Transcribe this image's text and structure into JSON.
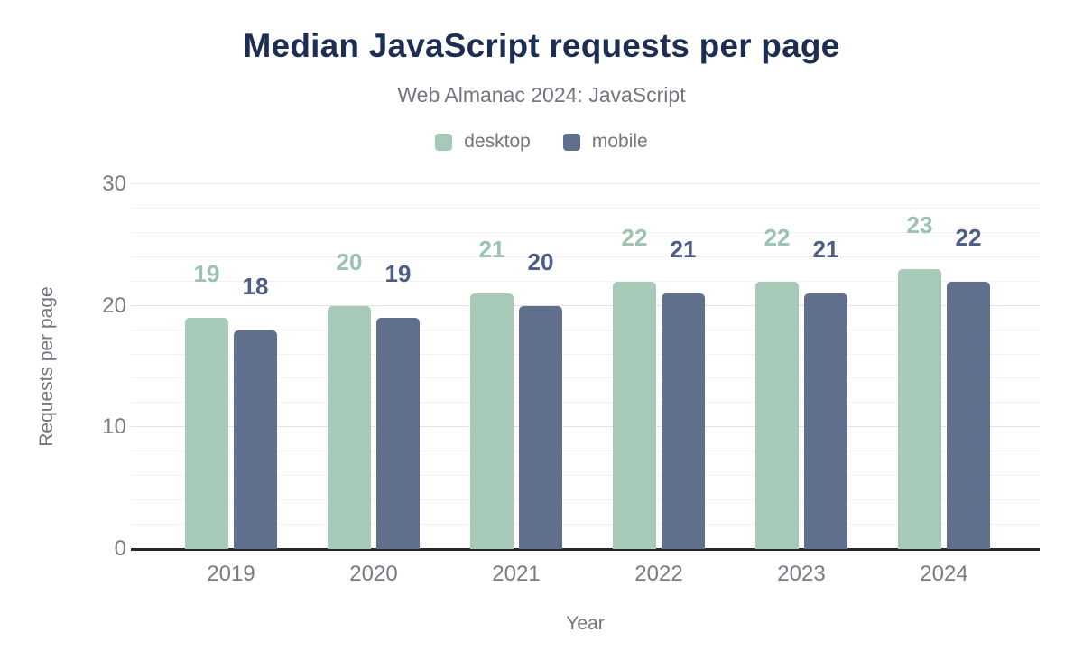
{
  "chart_data": {
    "type": "bar",
    "title": "Median JavaScript requests per page",
    "subtitle": "Web Almanac 2024: JavaScript",
    "xlabel": "Year",
    "ylabel": "Requests per page",
    "categories": [
      "2019",
      "2020",
      "2021",
      "2022",
      "2023",
      "2024"
    ],
    "series": [
      {
        "name": "desktop",
        "color": "#a6c9b8",
        "label_color": "#9cc2b0",
        "values": [
          19,
          20,
          21,
          22,
          22,
          23
        ]
      },
      {
        "name": "mobile",
        "color": "#60708c",
        "label_color": "#4e5e83",
        "values": [
          18,
          19,
          20,
          21,
          21,
          22
        ]
      }
    ],
    "ylim": [
      0,
      30
    ],
    "yticks": [
      0,
      10,
      20,
      30
    ],
    "minor_grid_step": 2,
    "grid": true,
    "legend_position": "top"
  },
  "colors": {
    "background": "#ffffff",
    "title": "#1c2f52",
    "text_muted": "#75757e",
    "tick": "#7b7b84",
    "grid_major": "#e2e2e7",
    "grid_minor": "#f3f3f6",
    "axis": "#26262b"
  }
}
